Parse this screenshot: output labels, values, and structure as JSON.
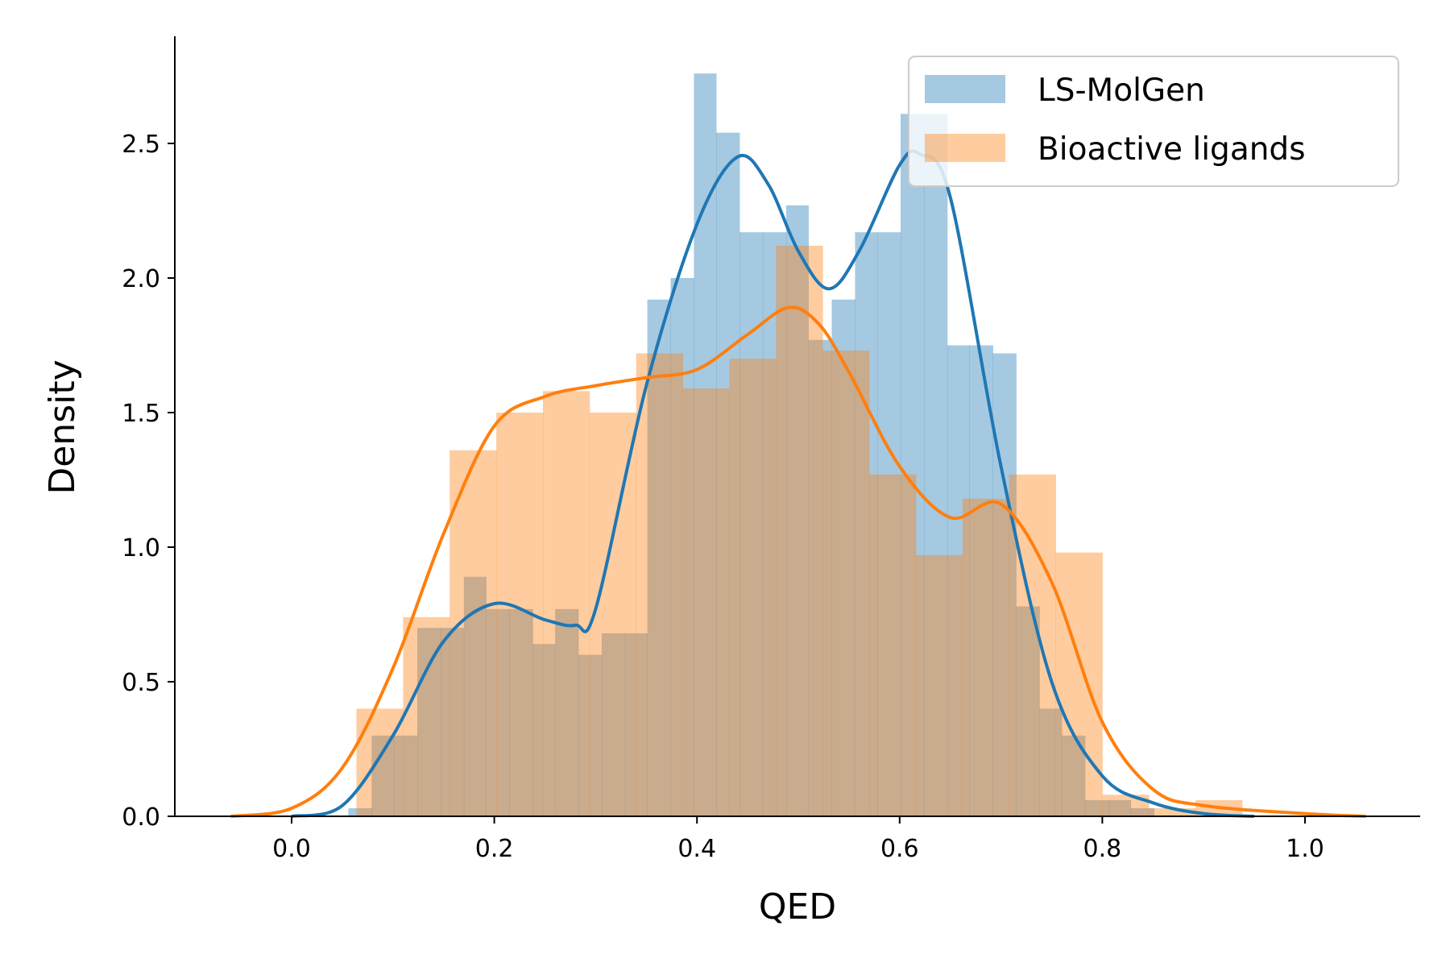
{
  "chart_data": {
    "type": "histogram",
    "xlabel": "QED",
    "ylabel": "Density",
    "xlim": [
      -0.115,
      1.115
    ],
    "ylim": [
      0,
      2.9
    ],
    "x_ticks": [
      "0.0",
      "0.2",
      "0.4",
      "0.6",
      "0.8",
      "1.0"
    ],
    "y_ticks": [
      "0.0",
      "0.5",
      "1.0",
      "1.5",
      "2.0",
      "2.5"
    ],
    "grid": false,
    "legend_position": "top-right",
    "series": [
      {
        "name": "LS-MolGen",
        "color": "#1f77b4",
        "bin_edges": [
          0.056,
          0.079,
          0.101,
          0.124,
          0.147,
          0.17,
          0.192,
          0.215,
          0.238,
          0.26,
          0.283,
          0.306,
          0.329,
          0.351,
          0.374,
          0.397,
          0.419,
          0.442,
          0.465,
          0.488,
          0.51,
          0.533,
          0.556,
          0.578,
          0.601,
          0.624,
          0.647,
          0.669,
          0.692,
          0.715,
          0.738,
          0.76,
          0.783,
          0.806,
          0.828,
          0.851
        ],
        "densities": [
          0.03,
          0.3,
          0.3,
          0.7,
          0.7,
          0.89,
          0.77,
          0.77,
          0.64,
          0.77,
          0.6,
          0.68,
          0.68,
          1.92,
          2.0,
          2.76,
          2.54,
          2.17,
          2.17,
          2.27,
          1.77,
          1.92,
          2.17,
          2.17,
          2.61,
          2.61,
          1.75,
          1.75,
          1.72,
          0.78,
          0.4,
          0.3,
          0.06,
          0.06,
          0.03
        ],
        "kde": {
          "x": [
            0.0,
            0.05,
            0.1,
            0.15,
            0.2,
            0.25,
            0.28,
            0.3,
            0.35,
            0.4,
            0.44,
            0.47,
            0.5,
            0.53,
            0.56,
            0.6,
            0.62,
            0.65,
            0.7,
            0.75,
            0.8,
            0.85,
            0.9,
            0.95
          ],
          "y": [
            0.0,
            0.04,
            0.3,
            0.65,
            0.79,
            0.73,
            0.71,
            0.77,
            1.6,
            2.2,
            2.45,
            2.35,
            2.1,
            1.96,
            2.1,
            2.42,
            2.46,
            2.3,
            1.3,
            0.5,
            0.15,
            0.05,
            0.01,
            0.0
          ]
        }
      },
      {
        "name": "Bioactive ligands",
        "color": "#ff7f0e",
        "bin_edges": [
          0.064,
          0.11,
          0.156,
          0.202,
          0.248,
          0.294,
          0.34,
          0.386,
          0.432,
          0.478,
          0.524,
          0.57,
          0.616,
          0.662,
          0.708,
          0.754,
          0.8,
          0.846,
          0.892,
          0.938
        ],
        "densities": [
          0.4,
          0.74,
          1.36,
          1.5,
          1.58,
          1.5,
          1.72,
          1.59,
          1.7,
          2.12,
          1.73,
          1.27,
          0.97,
          1.18,
          1.27,
          0.98,
          0.08,
          0.03,
          0.06
        ],
        "kde": {
          "x": [
            -0.06,
            0.0,
            0.05,
            0.1,
            0.15,
            0.2,
            0.25,
            0.3,
            0.35,
            0.4,
            0.45,
            0.49,
            0.52,
            0.55,
            0.6,
            0.65,
            0.7,
            0.75,
            0.8,
            0.85,
            0.9,
            1.0,
            1.06
          ],
          "y": [
            0.0,
            0.03,
            0.18,
            0.55,
            1.05,
            1.45,
            1.56,
            1.6,
            1.63,
            1.66,
            1.79,
            1.89,
            1.83,
            1.65,
            1.3,
            1.11,
            1.16,
            0.87,
            0.35,
            0.1,
            0.04,
            0.01,
            0.0
          ]
        }
      }
    ]
  }
}
